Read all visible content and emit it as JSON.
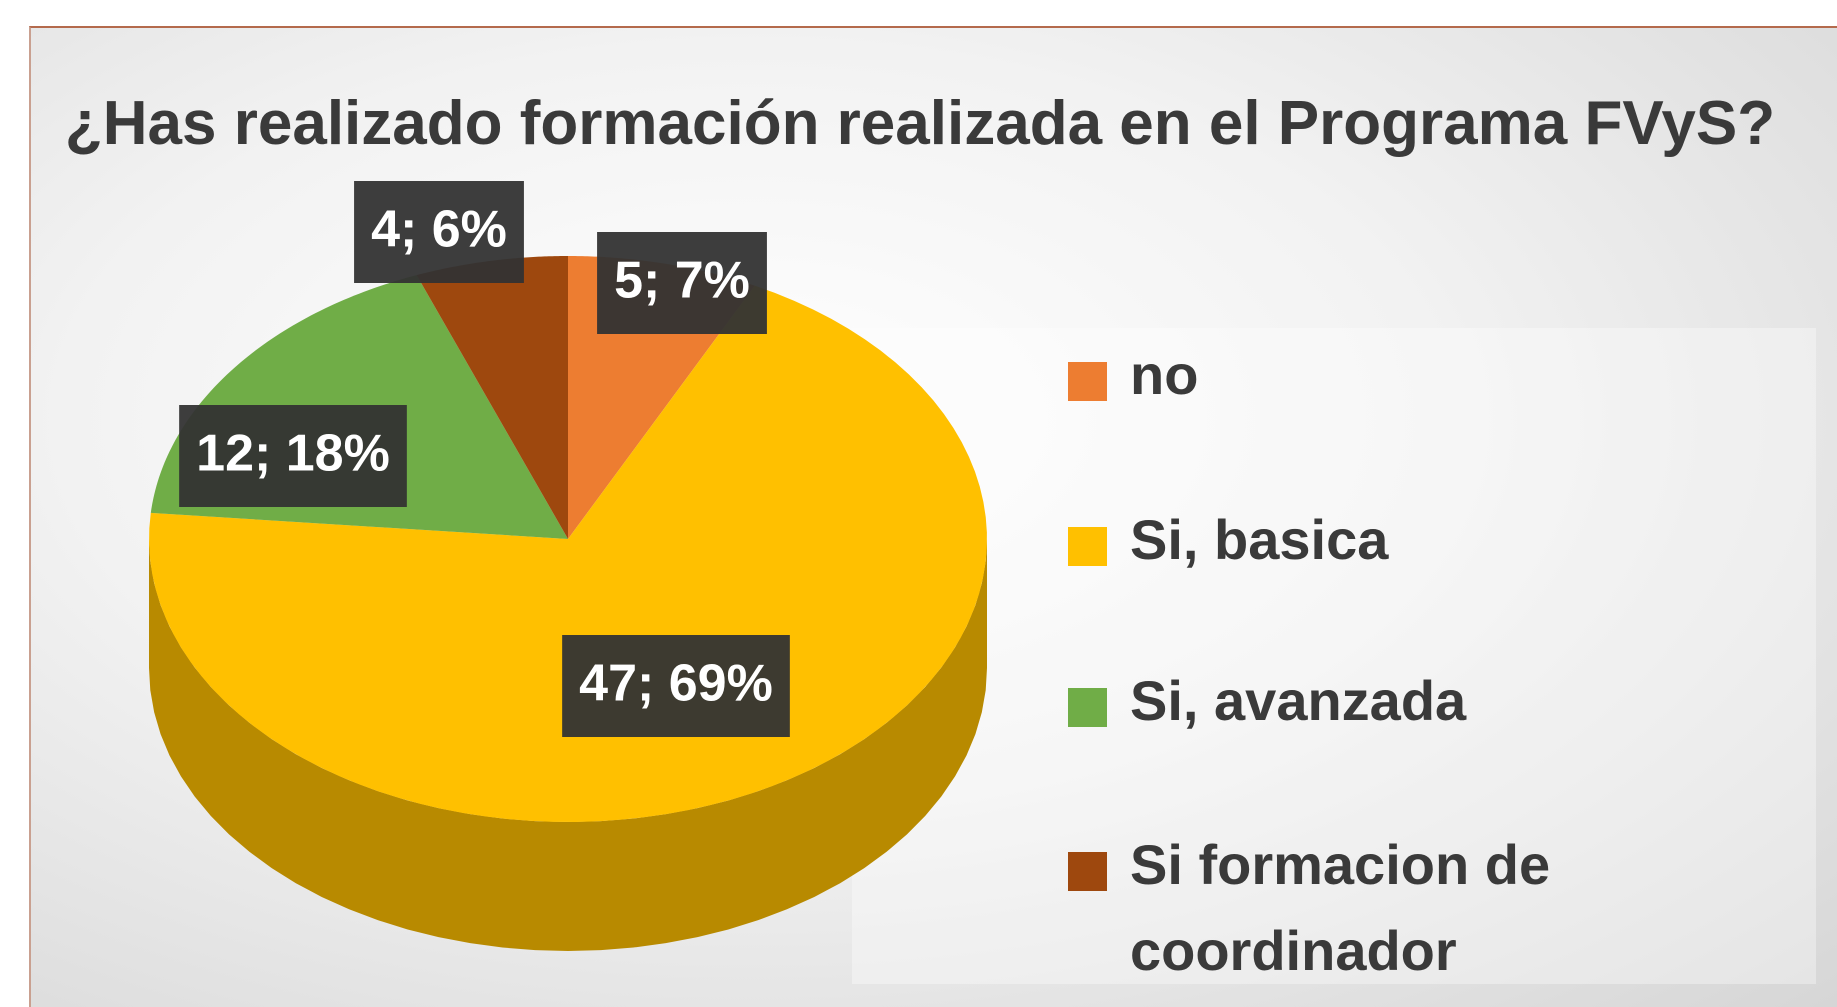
{
  "chart_data": {
    "type": "pie",
    "title": "¿Has realizado formación realizada en el Programa FVyS?",
    "categories": [
      "no",
      "Si, basica",
      "Si, avanzada",
      "Si formacion de coordinador"
    ],
    "values": [
      5,
      47,
      12,
      4
    ],
    "value_labels": [
      "5; 7%",
      "47; 69%",
      "12; 18%",
      "4; 6%"
    ],
    "colors": [
      "#ed7d31",
      "#ffc000",
      "#70ad47",
      "#9e480e"
    ],
    "legend": "right"
  }
}
